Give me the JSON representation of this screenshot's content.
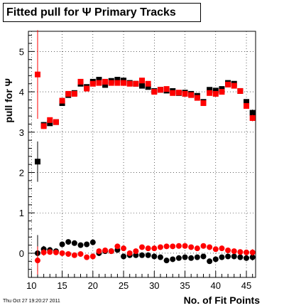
{
  "title": "Fitted pull for Ψ  Primary Tracks",
  "footer": "Thu Oct 27 19:20:27 2011",
  "chart_data": {
    "type": "scatter",
    "title": "Fitted pull for Ψ  Primary Tracks",
    "xlabel": "No. of Fit Points",
    "ylabel": "pull for Ψ",
    "xlim": [
      9.5,
      46.5
    ],
    "ylim": [
      -0.6,
      5.5
    ],
    "x_ticks": [
      10,
      15,
      20,
      25,
      30,
      35,
      40,
      45
    ],
    "y_ticks": [
      0,
      1,
      2,
      3,
      4,
      5
    ],
    "grid": true,
    "series": [
      {
        "color": "#000000",
        "marker": "square",
        "x": [
          11,
          12,
          13,
          14,
          15,
          16,
          17,
          18,
          19,
          20,
          21,
          22,
          23,
          24,
          25,
          26,
          27,
          28,
          29,
          30,
          31,
          32,
          33,
          34,
          35,
          36,
          37,
          38,
          39,
          40,
          41,
          42,
          43,
          44,
          45,
          46
        ],
        "y": [
          2.27,
          3.18,
          3.22,
          3.25,
          3.72,
          3.92,
          3.97,
          4.2,
          4.12,
          4.25,
          4.3,
          4.17,
          4.27,
          4.3,
          4.28,
          4.22,
          4.2,
          4.15,
          4.12,
          4.02,
          4.05,
          4.03,
          4.02,
          3.97,
          3.98,
          3.95,
          3.9,
          3.75,
          4.05,
          4.03,
          4.07,
          4.22,
          4.2,
          4.02,
          3.75,
          3.48
        ],
        "err": [
          0.5,
          0.07,
          0.06,
          0.05,
          0.05,
          0.04,
          0.04,
          0.04,
          0.04,
          0.04,
          0.04,
          0.04,
          0.04,
          0.04,
          0.04,
          0.04,
          0.04,
          0.04,
          0.04,
          0.04,
          0.04,
          0.04,
          0.04,
          0.04,
          0.04,
          0.04,
          0.05,
          0.05,
          0.05,
          0.05,
          0.05,
          0.05,
          0.06,
          0.06,
          0.07,
          0.08
        ]
      },
      {
        "color": "#ff0000",
        "marker": "square",
        "x": [
          11,
          12,
          13,
          14,
          15,
          16,
          17,
          18,
          19,
          20,
          21,
          22,
          23,
          24,
          25,
          26,
          27,
          28,
          29,
          30,
          31,
          32,
          33,
          34,
          35,
          36,
          37,
          38,
          39,
          40,
          41,
          42,
          43,
          44,
          45,
          46
        ],
        "y": [
          4.43,
          3.15,
          3.3,
          3.25,
          3.78,
          3.95,
          3.95,
          4.25,
          4.08,
          4.2,
          4.22,
          4.25,
          4.22,
          4.22,
          4.22,
          4.2,
          4.2,
          4.28,
          4.2,
          4.0,
          4.05,
          4.07,
          3.97,
          3.98,
          3.95,
          3.92,
          3.85,
          3.72,
          3.97,
          3.95,
          4.0,
          4.18,
          4.15,
          4.02,
          3.65,
          3.35
        ],
        "err": [
          1.1,
          0.07,
          0.06,
          0.05,
          0.05,
          0.04,
          0.04,
          0.04,
          0.04,
          0.04,
          0.04,
          0.04,
          0.04,
          0.04,
          0.04,
          0.04,
          0.04,
          0.04,
          0.04,
          0.04,
          0.04,
          0.04,
          0.04,
          0.04,
          0.04,
          0.04,
          0.05,
          0.05,
          0.05,
          0.05,
          0.05,
          0.05,
          0.06,
          0.06,
          0.07,
          0.08
        ]
      },
      {
        "color": "#000000",
        "marker": "circle",
        "x": [
          11,
          12,
          13,
          14,
          15,
          16,
          17,
          18,
          19,
          20,
          21,
          22,
          23,
          24,
          25,
          26,
          27,
          28,
          29,
          30,
          31,
          32,
          33,
          34,
          35,
          36,
          37,
          38,
          39,
          40,
          41,
          42,
          43,
          44,
          45,
          46
        ],
        "y": [
          0.0,
          0.1,
          0.08,
          0.05,
          0.22,
          0.28,
          0.25,
          0.2,
          0.22,
          0.27,
          0.0,
          0.05,
          0.05,
          0.08,
          -0.08,
          -0.05,
          -0.05,
          -0.05,
          -0.05,
          -0.08,
          -0.1,
          -0.18,
          -0.15,
          -0.12,
          -0.1,
          -0.12,
          -0.1,
          -0.08,
          -0.2,
          -0.15,
          -0.1,
          -0.08,
          -0.08,
          -0.1,
          -0.12,
          -0.1
        ],
        "err": [
          0.45,
          0.08,
          0.06,
          0.05,
          0.05,
          0.04,
          0.04,
          0.04,
          0.04,
          0.04,
          0.04,
          0.04,
          0.04,
          0.04,
          0.04,
          0.04,
          0.04,
          0.04,
          0.04,
          0.04,
          0.04,
          0.04,
          0.04,
          0.04,
          0.04,
          0.04,
          0.05,
          0.05,
          0.05,
          0.05,
          0.05,
          0.05,
          0.06,
          0.06,
          0.07,
          0.08
        ]
      },
      {
        "color": "#ff0000",
        "marker": "circle",
        "x": [
          11,
          12,
          13,
          14,
          15,
          16,
          17,
          18,
          19,
          20,
          21,
          22,
          23,
          24,
          25,
          26,
          27,
          28,
          29,
          30,
          31,
          32,
          33,
          34,
          35,
          36,
          37,
          38,
          39,
          40,
          41,
          42,
          43,
          44,
          45,
          46
        ],
        "y": [
          -0.18,
          0.02,
          0.03,
          0.02,
          0.0,
          -0.02,
          -0.05,
          -0.02,
          -0.1,
          -0.08,
          0.05,
          0.07,
          0.05,
          0.17,
          0.12,
          0.0,
          0.05,
          0.15,
          0.12,
          0.12,
          0.15,
          0.17,
          0.17,
          0.18,
          0.18,
          0.15,
          0.12,
          0.18,
          0.15,
          0.1,
          0.12,
          0.07,
          0.05,
          0.03,
          0.02,
          0.02
        ],
        "err": [
          0.35,
          0.08,
          0.06,
          0.05,
          0.05,
          0.04,
          0.04,
          0.04,
          0.04,
          0.04,
          0.04,
          0.04,
          0.04,
          0.04,
          0.04,
          0.04,
          0.04,
          0.04,
          0.04,
          0.04,
          0.04,
          0.04,
          0.04,
          0.04,
          0.04,
          0.04,
          0.05,
          0.05,
          0.05,
          0.05,
          0.05,
          0.05,
          0.06,
          0.06,
          0.07,
          0.08
        ]
      }
    ]
  }
}
